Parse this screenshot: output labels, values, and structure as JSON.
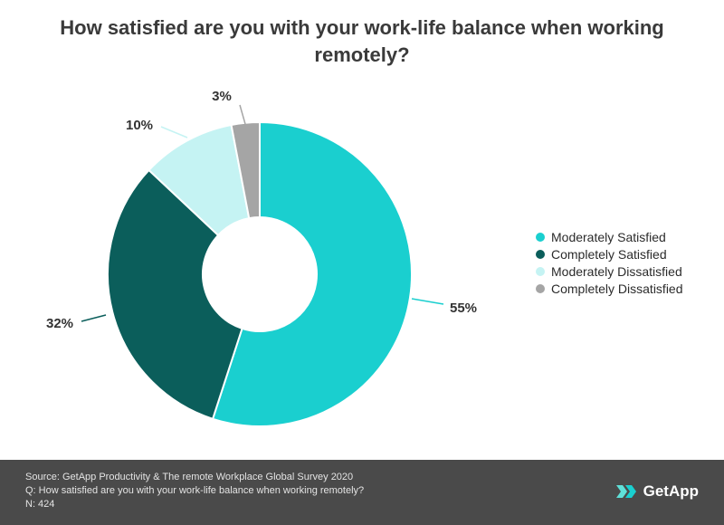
{
  "title": "How satisfied are you with your work-life balance when working remotely?",
  "chart_data": {
    "type": "pie",
    "donut": true,
    "title": "How satisfied are you with your work-life balance when working remotely?",
    "categories": [
      "Moderately Satisfied",
      "Completely Satisfied",
      "Moderately Dissatisfied",
      "Completely Dissatisfied"
    ],
    "values": [
      55,
      32,
      10,
      3
    ],
    "labels": [
      "55%",
      "32%",
      "10%",
      "3%"
    ],
    "colors": [
      "#1ACFCF",
      "#0B5E5B",
      "#C5F3F3",
      "#A5A5A5"
    ],
    "legend_position": "right"
  },
  "footer": {
    "source": "Source: GetApp Productivity & The  remote Workplace Global Survey 2020",
    "question": "Q: How satisfied are you with your work-life balance when working remotely?",
    "n": "N: 424"
  },
  "logo": {
    "icon": "getapp-chevrons-icon",
    "text": "GetApp"
  }
}
